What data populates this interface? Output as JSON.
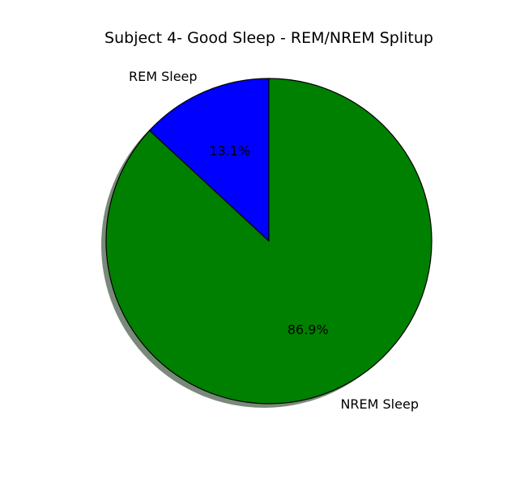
{
  "chart_data": {
    "type": "pie",
    "title": "Subject 4- Good Sleep - REM/NREM Splitup",
    "start_angle_deg": 90,
    "direction": "counterclockwise",
    "shadow": true,
    "shadow_color": "#7a8a7a",
    "edge_color": "#000000",
    "slices": [
      {
        "label": "REM Sleep",
        "value": 13.1,
        "pct_label": "13.1%",
        "color": "#0000ff"
      },
      {
        "label": "NREM Sleep",
        "value": 86.9,
        "pct_label": "86.9%",
        "color": "#008000"
      }
    ]
  }
}
